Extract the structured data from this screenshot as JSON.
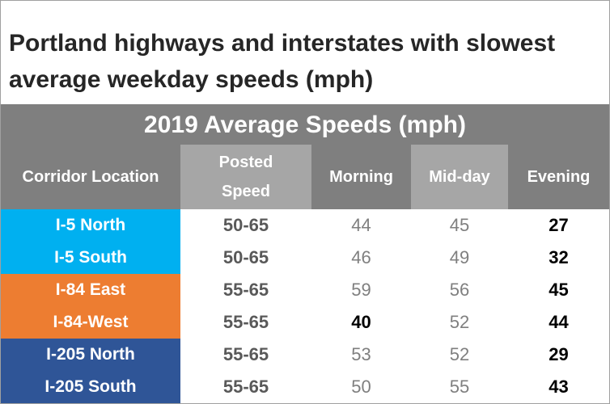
{
  "title": "Portland highways and interstates with slowest average weekday speeds (mph)",
  "table": {
    "caption": "2019 Average Speeds (mph)",
    "columns": [
      "Corridor Location",
      "Posted Speed",
      "Morning",
      "Mid-day",
      "Evening"
    ],
    "rows": [
      [
        "I-5 North",
        "50-65",
        44,
        45,
        27
      ],
      [
        "I-5 South",
        "50-65",
        46,
        49,
        32
      ],
      [
        "I-84 East",
        "55-65",
        59,
        56,
        45
      ],
      [
        "I-84-West",
        "55-65",
        40,
        52,
        44
      ],
      [
        "I-205 North",
        "55-65",
        53,
        52,
        29
      ],
      [
        "I-205 South",
        "55-65",
        50,
        55,
        43
      ]
    ]
  }
}
